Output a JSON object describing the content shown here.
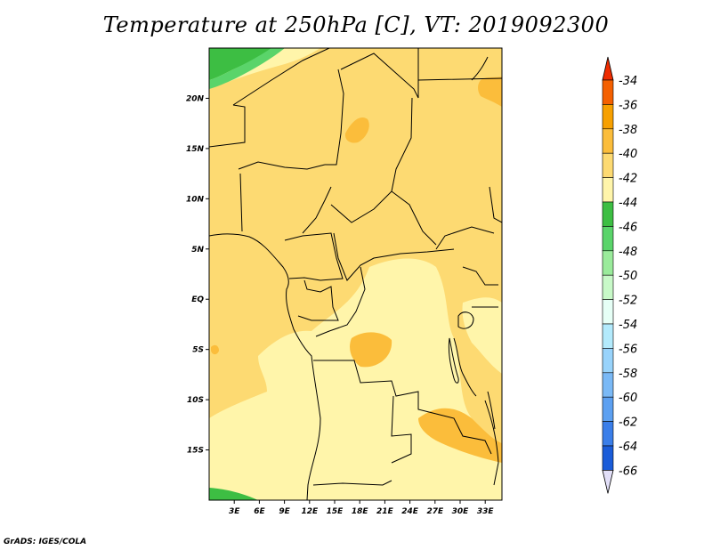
{
  "title": "Temperature at 250hPa [C], VT: 2019092300",
  "credit": "GrADS: IGES/COLA",
  "map": {
    "lon_range": [
      0,
      35
    ],
    "lat_range": [
      -20,
      25
    ],
    "lat_ticks": [
      {
        "value": 20,
        "label": "20N"
      },
      {
        "value": 15,
        "label": "15N"
      },
      {
        "value": 10,
        "label": "10N"
      },
      {
        "value": 5,
        "label": "5N"
      },
      {
        "value": 0,
        "label": "EQ"
      },
      {
        "value": -5,
        "label": "5S"
      },
      {
        "value": -10,
        "label": "10S"
      },
      {
        "value": -15,
        "label": "15S"
      }
    ],
    "lon_ticks": [
      {
        "value": 3,
        "label": "3E"
      },
      {
        "value": 6,
        "label": "6E"
      },
      {
        "value": 9,
        "label": "9E"
      },
      {
        "value": 12,
        "label": "12E"
      },
      {
        "value": 15,
        "label": "15E"
      },
      {
        "value": 18,
        "label": "18E"
      },
      {
        "value": 21,
        "label": "21E"
      },
      {
        "value": 24,
        "label": "24E"
      },
      {
        "value": 27,
        "label": "27E"
      },
      {
        "value": 30,
        "label": "30E"
      },
      {
        "value": 33,
        "label": "33E"
      }
    ]
  },
  "colorbar": {
    "levels": [
      {
        "label": "-34",
        "color": "#ee2c00"
      },
      {
        "label": "-36",
        "color": "#f46000"
      },
      {
        "label": "-38",
        "color": "#f7a000"
      },
      {
        "label": "-40",
        "color": "#fbbd3b"
      },
      {
        "label": "-42",
        "color": "#fdda72"
      },
      {
        "label": "-44",
        "color": "#fff5aa"
      },
      {
        "label": "-46",
        "color": "#3dbe43"
      },
      {
        "label": "-48",
        "color": "#5ad46a"
      },
      {
        "label": "-50",
        "color": "#9aeb9b"
      },
      {
        "label": "-52",
        "color": "#c8f9c8"
      },
      {
        "label": "-54",
        "color": "#e6fff6"
      },
      {
        "label": "-56",
        "color": "#b3eafc"
      },
      {
        "label": "-58",
        "color": "#98d3fb"
      },
      {
        "label": "-60",
        "color": "#7ab9f6"
      },
      {
        "label": "-62",
        "color": "#5ca0f1"
      },
      {
        "label": "-64",
        "color": "#3a7ee9"
      },
      {
        "label": "-66",
        "color": "#1a5cd9"
      }
    ],
    "top_color": "#ee2c00",
    "bottom_cap_color": "#e2dff8",
    "below_lowest_color": "#0c1473"
  }
}
